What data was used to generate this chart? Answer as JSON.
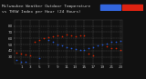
{
  "background_color": "#111111",
  "plot_bg_color": "#111111",
  "grid_color": "#555555",
  "temp_color": "#cc2200",
  "thsw_color": "#2255cc",
  "legend_thsw_color": "#3366dd",
  "legend_temp_color": "#dd2211",
  "title_color": "#cccccc",
  "tick_color": "#bbbbbb",
  "title_fontsize": 3.2,
  "tick_fontsize": 3.0,
  "dot_size": 1.5,
  "ylim": [
    20,
    90
  ],
  "xlim": [
    -0.5,
    23.5
  ],
  "yticks": [
    30,
    40,
    50,
    60,
    70,
    80
  ],
  "xticks": [
    1,
    3,
    5,
    7,
    9,
    11,
    13,
    15,
    17,
    19,
    21,
    23
  ],
  "temp_data": [
    [
      0,
      37
    ],
    [
      1,
      36
    ],
    [
      2,
      34
    ],
    [
      3,
      33
    ],
    [
      4,
      55
    ],
    [
      5,
      57
    ],
    [
      6,
      60
    ],
    [
      7,
      62
    ],
    [
      8,
      63
    ],
    [
      9,
      65
    ],
    [
      10,
      64
    ],
    [
      11,
      66
    ],
    [
      12,
      65
    ],
    [
      13,
      64
    ],
    [
      14,
      65
    ],
    [
      15,
      65
    ],
    [
      16,
      35
    ],
    [
      17,
      33
    ],
    [
      20,
      47
    ],
    [
      21,
      45
    ],
    [
      22,
      44
    ],
    [
      23,
      42
    ]
  ],
  "thsw_data": [
    [
      0,
      25
    ],
    [
      1,
      23
    ],
    [
      2,
      22
    ],
    [
      5,
      28
    ],
    [
      7,
      58
    ],
    [
      8,
      55
    ],
    [
      9,
      50
    ],
    [
      10,
      48
    ],
    [
      11,
      46
    ],
    [
      12,
      44
    ],
    [
      13,
      43
    ],
    [
      14,
      42
    ],
    [
      15,
      42
    ],
    [
      16,
      44
    ],
    [
      17,
      46
    ],
    [
      18,
      48
    ],
    [
      19,
      50
    ],
    [
      20,
      52
    ],
    [
      21,
      54
    ],
    [
      22,
      55
    ],
    [
      23,
      56
    ]
  ]
}
